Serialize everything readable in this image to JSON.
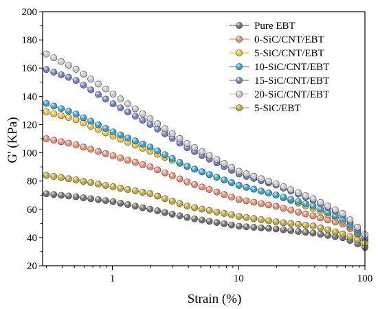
{
  "chart_data": {
    "type": "scatter",
    "xlabel": "Strain (%)",
    "ylabel": "G' (KPa)",
    "xscale": "log",
    "xlim": [
      0.28,
      100
    ],
    "ylim": [
      20,
      200
    ],
    "xticks": [
      1,
      10,
      100
    ],
    "xtick_labels": [
      "1",
      "10",
      "100"
    ],
    "yticks": [
      20,
      40,
      60,
      80,
      100,
      120,
      140,
      160,
      180,
      200
    ],
    "ytick_labels": [
      "20",
      "40",
      "60",
      "80",
      "100",
      "120",
      "140",
      "160",
      "180",
      "200"
    ],
    "grid": false,
    "legend_position": "top-right",
    "series": [
      {
        "name": "Pure EBT",
        "color": "#6e6e6e",
        "points": [
          [
            0.3,
            71
          ],
          [
            0.5,
            69
          ],
          [
            1,
            65.5
          ],
          [
            2,
            60
          ],
          [
            4,
            54
          ],
          [
            10,
            48
          ],
          [
            20,
            46
          ],
          [
            40,
            43
          ],
          [
            70,
            39.5
          ],
          [
            100,
            33
          ]
        ]
      },
      {
        "name": "0-SiC/CNT/EBT",
        "color": "#f08a6c",
        "points": [
          [
            0.3,
            110
          ],
          [
            0.5,
            106
          ],
          [
            1,
            98
          ],
          [
            2,
            90
          ],
          [
            4,
            79
          ],
          [
            10,
            67
          ],
          [
            20,
            62
          ],
          [
            40,
            55
          ],
          [
            70,
            49
          ],
          [
            100,
            38
          ]
        ]
      },
      {
        "name": "5-SiC/CNT/EBT",
        "color": "#f5c02a",
        "points": [
          [
            0.3,
            129
          ],
          [
            0.5,
            124
          ],
          [
            1,
            112
          ],
          [
            2,
            101
          ],
          [
            4,
            90
          ],
          [
            10,
            77
          ],
          [
            20,
            70
          ],
          [
            40,
            60
          ],
          [
            70,
            51
          ],
          [
            100,
            38
          ]
        ]
      },
      {
        "name": "10-SiC/CNT/EBT",
        "color": "#2ba4d8",
        "points": [
          [
            0.3,
            135
          ],
          [
            0.5,
            128
          ],
          [
            1,
            115
          ],
          [
            2,
            104
          ],
          [
            4,
            90
          ],
          [
            10,
            77
          ],
          [
            20,
            70
          ],
          [
            40,
            62
          ],
          [
            70,
            52
          ],
          [
            100,
            39
          ]
        ]
      },
      {
        "name": "15-SiC/CNT/EBT",
        "color": "#6f7fc6",
        "points": [
          [
            0.3,
            159
          ],
          [
            0.5,
            152
          ],
          [
            1,
            135
          ],
          [
            2,
            120
          ],
          [
            4,
            103
          ],
          [
            10,
            85
          ],
          [
            20,
            77
          ],
          [
            40,
            66
          ],
          [
            70,
            55
          ],
          [
            100,
            40
          ]
        ]
      },
      {
        "name": "20-SiC/CNT/EBT",
        "color": "#c7c7c7",
        "points": [
          [
            0.3,
            170
          ],
          [
            0.5,
            160
          ],
          [
            1,
            142
          ],
          [
            2,
            124
          ],
          [
            4,
            106
          ],
          [
            10,
            87
          ],
          [
            20,
            78
          ],
          [
            40,
            67
          ],
          [
            70,
            56
          ],
          [
            100,
            42
          ]
        ]
      },
      {
        "name": "5-SiC/EBT",
        "color": "#c2a92e",
        "points": [
          [
            0.3,
            84
          ],
          [
            0.5,
            81
          ],
          [
            1,
            76
          ],
          [
            2,
            71
          ],
          [
            4,
            62
          ],
          [
            10,
            55
          ],
          [
            20,
            51
          ],
          [
            40,
            48
          ],
          [
            70,
            42
          ],
          [
            100,
            36
          ]
        ]
      }
    ]
  }
}
